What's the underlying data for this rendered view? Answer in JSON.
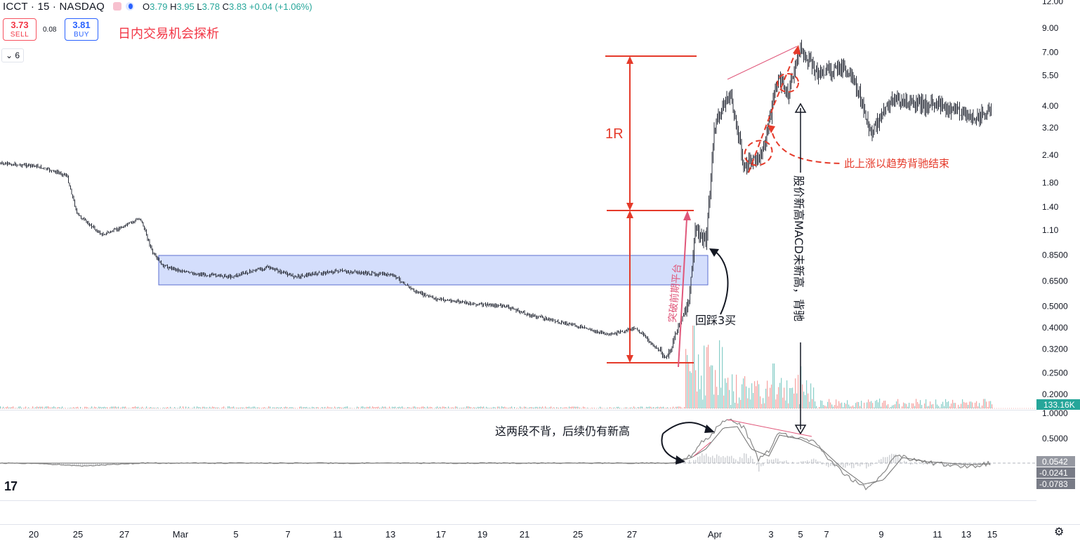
{
  "header": {
    "symbol": "ICCT · 15 · NASDAQ",
    "o_key": "O",
    "o_val": "3.79",
    "h_key": "H",
    "h_val": "3.95",
    "l_key": "L",
    "l_val": "3.78",
    "c_key": "C",
    "c_val": "3.83",
    "change": "+0.04 (+1.06%)"
  },
  "trade": {
    "sell_price": "3.73",
    "sell_label": "SELL",
    "spread": "0.08",
    "buy_price": "3.81",
    "buy_label": "BUY"
  },
  "title_cn": "日内交易机会探析",
  "indicator_toggle": "6",
  "logo_text": "17",
  "colors": {
    "up": "#26a69a",
    "down": "#ef5350",
    "annotation_red": "#f23645",
    "box_fill": "#c9d6fb",
    "box_border": "#5b6fd1",
    "macd_line": "#888888"
  },
  "chart_data": {
    "type": "candlestick",
    "y_scale": "log",
    "price_ticks": [
      "12.00",
      "9.00",
      "7.00",
      "5.50",
      "4.00",
      "3.20",
      "2.40",
      "1.80",
      "1.40",
      "1.10",
      "0.8500",
      "0.6500",
      "0.5000",
      "0.4000",
      "0.3200",
      "0.2500",
      "0.2000"
    ],
    "volume_label": "133.16K",
    "x_tick_labels": [
      "20",
      "25",
      "27",
      "Mar",
      "5",
      "7",
      "11",
      "13",
      "17",
      "19",
      "21",
      "25",
      "27",
      "Apr",
      "3",
      "5",
      "7",
      "9",
      "11",
      "13",
      "15"
    ],
    "price_series": [
      {
        "x": "Feb 20",
        "y": 2.2
      },
      {
        "x": "Feb 22",
        "y": 2.15
      },
      {
        "x": "Feb 24",
        "y": 1.95
      },
      {
        "x": "Feb 25",
        "y": 1.3
      },
      {
        "x": "Feb 26",
        "y": 1.05
      },
      {
        "x": "Feb 27",
        "y": 1.12
      },
      {
        "x": "Feb 28",
        "y": 1.25
      },
      {
        "x": "Feb 29",
        "y": 0.86
      },
      {
        "x": "Mar 1",
        "y": 0.76
      },
      {
        "x": "Mar 4",
        "y": 0.7
      },
      {
        "x": "Mar 6",
        "y": 0.68
      },
      {
        "x": "Mar 7",
        "y": 0.75
      },
      {
        "x": "Mar 8",
        "y": 0.68
      },
      {
        "x": "Mar 11",
        "y": 0.72
      },
      {
        "x": "Mar 13",
        "y": 0.69
      },
      {
        "x": "Mar 14",
        "y": 0.58
      },
      {
        "x": "Mar 15",
        "y": 0.54
      },
      {
        "x": "Mar 18",
        "y": 0.51
      },
      {
        "x": "Mar 20",
        "y": 0.5
      },
      {
        "x": "Mar 21",
        "y": 0.46
      },
      {
        "x": "Mar 22",
        "y": 0.43
      },
      {
        "x": "Mar 25",
        "y": 0.4
      },
      {
        "x": "Mar 26",
        "y": 0.37
      },
      {
        "x": "Mar 27",
        "y": 0.4
      },
      {
        "x": "Mar 28",
        "y": 0.29
      },
      {
        "x": "Mar 28 late",
        "y": 0.55
      },
      {
        "x": "Apr 1",
        "y": 1.12
      },
      {
        "x": "Apr 1 mid",
        "y": 0.95
      },
      {
        "x": "Apr 1 late",
        "y": 3.3
      },
      {
        "x": "Apr 2",
        "y": 4.6
      },
      {
        "x": "Apr 2 mid",
        "y": 2.1
      },
      {
        "x": "Apr 3",
        "y": 2.4
      },
      {
        "x": "Apr 3 late",
        "y": 5.3
      },
      {
        "x": "Apr 4",
        "y": 4.6
      },
      {
        "x": "Apr 5",
        "y": 7.2
      },
      {
        "x": "Apr 5 mid",
        "y": 5.6
      },
      {
        "x": "Apr 8",
        "y": 6.0
      },
      {
        "x": "Apr 8 mid",
        "y": 4.7
      },
      {
        "x": "Apr 9",
        "y": 3.0
      },
      {
        "x": "Apr 10",
        "y": 4.3
      },
      {
        "x": "Apr 11",
        "y": 4.1
      },
      {
        "x": "Apr 12",
        "y": 4.0
      },
      {
        "x": "Apr 15",
        "y": 3.5
      },
      {
        "x": "Apr 15 late",
        "y": 3.83
      }
    ],
    "macd": {
      "ticks": [
        "1.0000",
        "0.5000"
      ],
      "values": [
        {
          "label": "0.0542"
        },
        {
          "label": "-0.0241"
        },
        {
          "label": "-0.0783"
        }
      ]
    },
    "annotations": {
      "one_r": "1R",
      "breakout": "突破前期平台",
      "pullback_buy": "回踩3买",
      "divergence_end": "此上涨以趋势背驰结束",
      "new_high": "股价新高MACD未新高，背驰",
      "no_divergence": "这两段不背，后续仍有新高"
    }
  }
}
